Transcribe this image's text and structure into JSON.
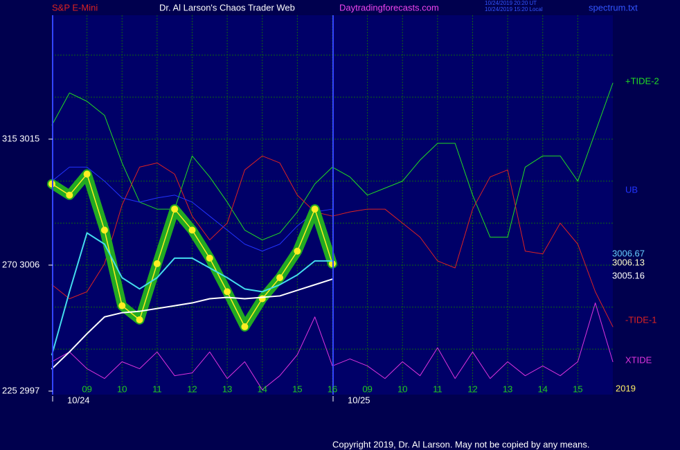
{
  "chart_data": {
    "type": "line",
    "header": {
      "left": "S&P E-Mini",
      "title": "Dr. Al Larson's Chaos Trader Web",
      "site": "Daytradingforecasts.com",
      "stamps": [
        "10/24/2019 20:20 UT",
        "10/24/2019 15:20 Local"
      ],
      "file": "spectrum.txt"
    },
    "copyright": "Copyright 2019, Dr. Al Larson. May not be copied by any means.",
    "year_label": "2019",
    "date_labels": [
      "10/24",
      "10/25"
    ],
    "xlim": [
      0,
      16
    ],
    "ylim": [
      2996.75,
      3023.85
    ],
    "yticks": [
      {
        "value": 3015,
        "label": "315  3015"
      },
      {
        "value": 3006,
        "label": "270  3006"
      },
      {
        "value": 2997,
        "label": "225  2997"
      }
    ],
    "ygrid": [
      3021,
      3018,
      3015,
      3012,
      3009,
      3006,
      3003,
      3000
    ],
    "grid": true,
    "xticks": [
      {
        "value": 1,
        "label": "09"
      },
      {
        "value": 2,
        "label": "10"
      },
      {
        "value": 3,
        "label": "11"
      },
      {
        "value": 4,
        "label": "12"
      },
      {
        "value": 5,
        "label": "13"
      },
      {
        "value": 6,
        "label": "14"
      },
      {
        "value": 7,
        "label": "15"
      },
      {
        "value": 8,
        "label": "16"
      },
      {
        "value": 9,
        "label": "09"
      },
      {
        "value": 10,
        "label": "10"
      },
      {
        "value": 11,
        "label": "11"
      },
      {
        "value": 12,
        "label": "12"
      },
      {
        "value": 13,
        "label": "13"
      },
      {
        "value": 14,
        "label": "14"
      },
      {
        "value": 15,
        "label": "15"
      }
    ],
    "x": [
      0,
      0.5,
      1,
      1.5,
      2,
      2.5,
      3,
      3.5,
      4,
      4.5,
      5,
      5.5,
      6,
      6.5,
      7,
      7.5,
      8,
      8.5,
      9,
      9.5,
      10,
      10.5,
      11,
      11.5,
      12,
      12.5,
      13,
      13.5,
      14,
      14.5,
      15,
      15.5,
      16
    ],
    "series": [
      {
        "name": "+TIDE-2",
        "color": "#22dd22",
        "values": [
          3016.0,
          3018.3,
          3017.7,
          3016.7,
          3013.3,
          3010.5,
          3010.0,
          3010.0,
          3013.8,
          3012.3,
          3010.5,
          3008.5,
          3007.8,
          3008.3,
          3009.8,
          3011.8,
          3013.0,
          3012.3,
          3011.0,
          3011.5,
          3012.0,
          3013.5,
          3014.7,
          3014.7,
          3011.0,
          3008.0,
          3008.0,
          3013.0,
          3013.8,
          3013.8,
          3012.0,
          3015.5,
          3019.0
        ]
      },
      {
        "name": "-TIDE-1",
        "color": "#dd2222",
        "values": [
          3004.6,
          3003.6,
          3004.1,
          3006.1,
          3010.3,
          3013.0,
          3013.3,
          3012.5,
          3009.5,
          3007.8,
          3009.0,
          3012.8,
          3013.8,
          3013.3,
          3011.0,
          3009.8,
          3009.5,
          3009.8,
          3010.0,
          3010.0,
          3009.0,
          3008.0,
          3006.3,
          3005.8,
          3010.0,
          3012.3,
          3012.8,
          3007.0,
          3006.8,
          3009.0,
          3007.5,
          3004.1,
          3001.6
        ]
      },
      {
        "name": "UB",
        "color": "#2233ff",
        "values": [
          3012.0,
          3013.0,
          3013.0,
          3012.0,
          3010.8,
          3010.5,
          3010.8,
          3011.0,
          3010.5,
          3009.5,
          3008.5,
          3007.5,
          3007.0,
          3007.5,
          3008.8,
          3009.8,
          3010.0,
          null,
          null,
          null,
          null,
          null,
          null,
          null,
          null,
          null,
          null,
          null,
          null,
          null,
          null,
          null,
          null
        ]
      },
      {
        "name": "XTIDE",
        "color": "#dd33dd",
        "values": [
          2999.1,
          2999.8,
          2998.6,
          2997.9,
          2999.1,
          2998.6,
          2999.8,
          2998.1,
          2998.3,
          2999.8,
          2997.9,
          2999.1,
          2997.1,
          2998.1,
          2999.6,
          3002.3,
          2998.8,
          2999.3,
          2998.8,
          2997.9,
          2999.1,
          2998.1,
          3000.1,
          2997.9,
          2999.8,
          2997.9,
          2999.1,
          2998.1,
          2998.8,
          2998.1,
          2999.1,
          3003.3,
          2999.1
        ]
      },
      {
        "color": "#22aa22",
        "values": [
          3011.8,
          3011.0,
          3012.5,
          3008.5,
          3003.1,
          3002.1,
          3006.1,
          3010.0,
          3008.5,
          3006.5,
          3004.1,
          3001.6,
          3003.6,
          3005.1,
          3007.0,
          3010.0,
          3006.1,
          null,
          null,
          null,
          null,
          null,
          null,
          null,
          null,
          null,
          null,
          null,
          null,
          null,
          null,
          null,
          null
        ]
      },
      {
        "color": "#44ddee",
        "values": [
          2999.6,
          3004.1,
          3008.3,
          3007.5,
          3005.1,
          3004.3,
          3005.1,
          3006.5,
          3006.5,
          3005.8,
          3005.1,
          3004.3,
          3004.1,
          3004.6,
          3005.3,
          3006.3,
          3006.3,
          null,
          null,
          null,
          null,
          null,
          null,
          null,
          null,
          null,
          null,
          null,
          null,
          null,
          null,
          null,
          null
        ]
      },
      {
        "color": "#ffffff",
        "values": [
          2998.6,
          2999.8,
          3001.1,
          3002.3,
          3002.6,
          3002.7,
          3002.9,
          3003.1,
          3003.3,
          3003.6,
          3003.7,
          3003.6,
          3003.7,
          3003.8,
          3004.2,
          3004.6,
          3005.0,
          null,
          null,
          null,
          null,
          null,
          null,
          null,
          null,
          null,
          null,
          null,
          null,
          null,
          null,
          null,
          null
        ]
      }
    ],
    "price_marker_color": "#ffee22",
    "readouts": [
      {
        "label": "3006.67",
        "color": "#66ccff"
      },
      {
        "label": "3006.13",
        "color": "#ffffcc"
      },
      {
        "label": "3005.16",
        "color": "#ffffff"
      }
    ]
  }
}
